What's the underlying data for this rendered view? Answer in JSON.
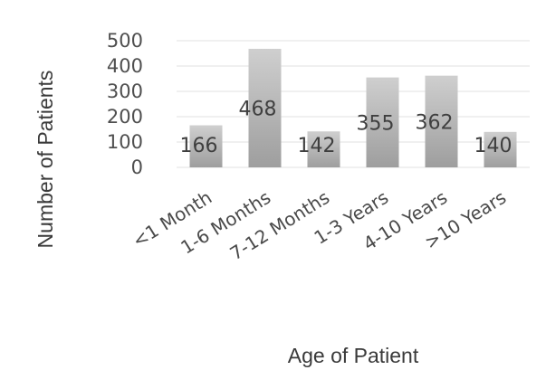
{
  "chart_data": {
    "type": "bar",
    "xlabel": "Age of Patient",
    "ylabel": "Number of Patients",
    "categories": [
      "<1 Month",
      "1-6 Months",
      "7-12 Months",
      "1-3 Years",
      "4-10 Years",
      ">10 Years"
    ],
    "values": [
      166,
      468,
      142,
      355,
      362,
      140
    ],
    "ylim": [
      0,
      500
    ],
    "yticks": [
      0,
      100,
      200,
      300,
      400,
      500
    ],
    "grid": true,
    "legend": "none",
    "colors": {
      "bar_top": "#cfcfcf",
      "bar_bottom": "#9e9e9e",
      "grid": "#e2e2e2"
    }
  }
}
